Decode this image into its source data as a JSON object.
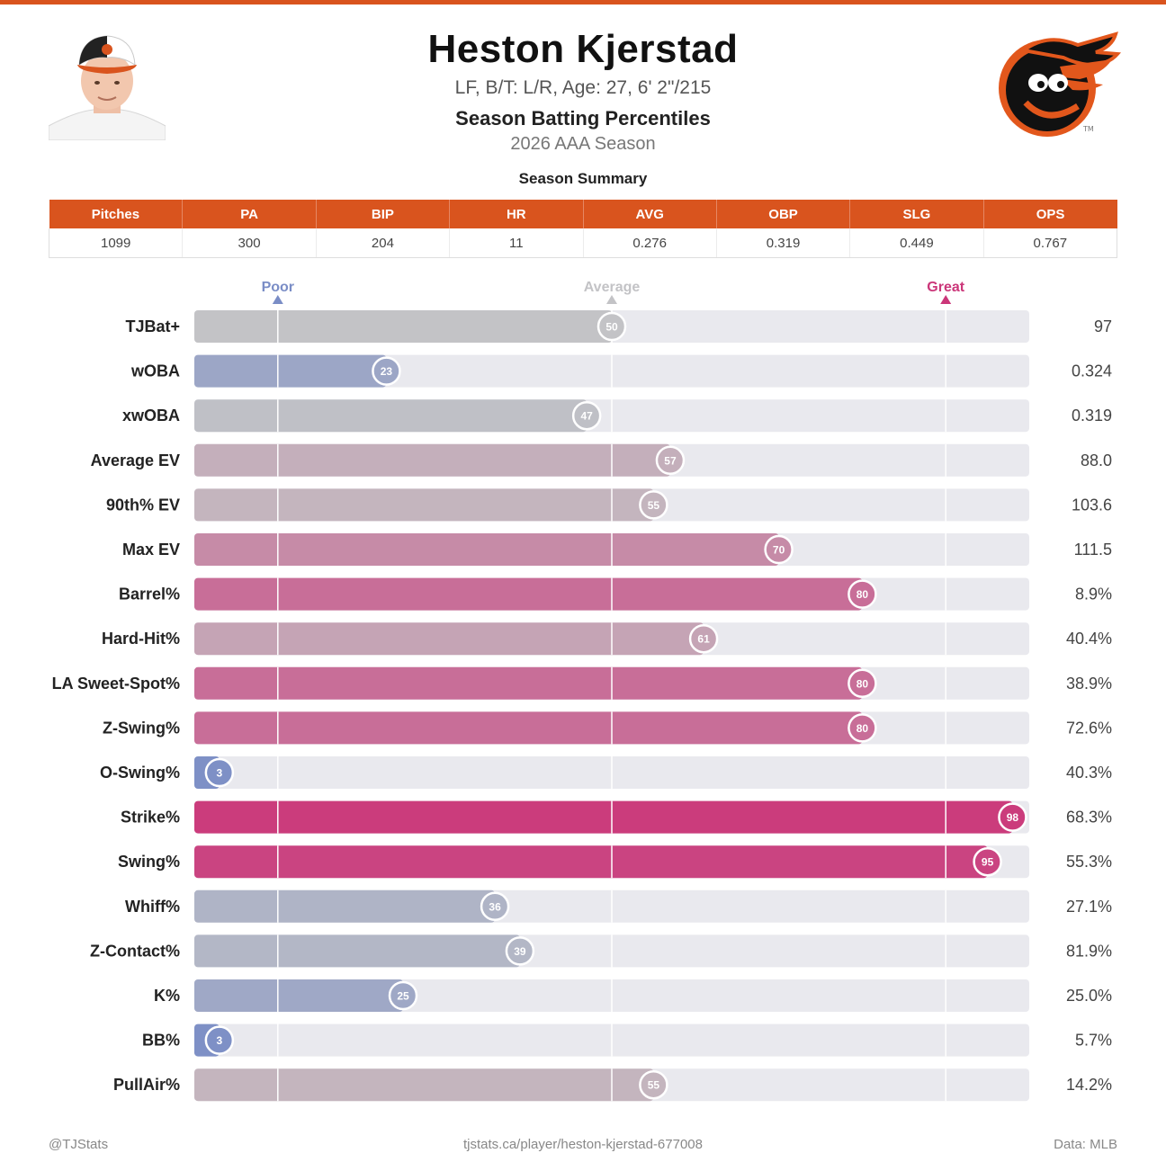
{
  "header": {
    "player_name": "Heston Kjerstad",
    "player_info": "LF, B/T: L/R, Age: 27, 6' 2\"/215",
    "report_title": "Season Batting Percentiles",
    "season": "2026 AAA Season",
    "team_logo": "orioles-bird-logo",
    "headshot": "player-headshot"
  },
  "summary": {
    "label": "Season Summary",
    "columns": [
      "Pitches",
      "PA",
      "BIP",
      "HR",
      "AVG",
      "OBP",
      "SLG",
      "OPS"
    ],
    "values": [
      "1099",
      "300",
      "204",
      "11",
      "0.276",
      "0.319",
      "0.449",
      "0.767"
    ]
  },
  "colors": {
    "accent": "#d9541e",
    "poor": "#7a8dc6",
    "average": "#c3c3c6",
    "great": "#cb3679",
    "track": "#e9e9ee"
  },
  "chart_data": {
    "type": "bar",
    "orientation": "horizontal",
    "xlim": [
      0,
      100
    ],
    "markers": [
      {
        "label": "Poor",
        "value": 10
      },
      {
        "label": "Average",
        "value": 50
      },
      {
        "label": "Great",
        "value": 90
      }
    ],
    "categories": [
      "TJBat+",
      "wOBA",
      "xwOBA",
      "Average EV",
      "90th% EV",
      "Max EV",
      "Barrel%",
      "Hard-Hit%",
      "LA Sweet-Spot%",
      "Z-Swing%",
      "O-Swing%",
      "Strike%",
      "Swing%",
      "Whiff%",
      "Z-Contact%",
      "K%",
      "BB%",
      "PullAir%"
    ],
    "percentiles": [
      50,
      23,
      47,
      57,
      55,
      70,
      80,
      61,
      80,
      80,
      3,
      98,
      95,
      36,
      39,
      25,
      3,
      55
    ],
    "stat_values": [
      "97",
      "0.324",
      "0.319",
      "88.0",
      "103.6",
      "111.5",
      "8.9%",
      "40.4%",
      "38.9%",
      "72.6%",
      "40.3%",
      "68.3%",
      "55.3%",
      "27.1%",
      "81.9%",
      "25.0%",
      "5.7%",
      "14.2%"
    ]
  },
  "footer": {
    "handle": "@TJStats",
    "url": "tjstats.ca/player/heston-kjerstad-677008",
    "source": "Data: MLB"
  }
}
